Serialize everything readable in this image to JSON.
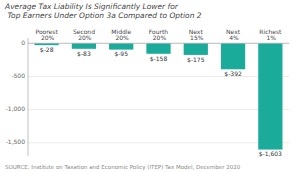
{
  "chart_data": {
    "type": "bar",
    "title": "Average Tax Liability Is Significantly Lower for Top Earners Under Option 3a Compared to Option 2",
    "categories": [
      "Poorest 20%",
      "Second 20%",
      "Middle 20%",
      "Fourth 20%",
      "Next 15%",
      "Next 4%",
      "Richest 1%"
    ],
    "values": [
      -28,
      -83,
      -95,
      -158,
      -175,
      -392,
      -1603
    ],
    "value_labels": [
      "$-28",
      "$-83",
      "$-95",
      "$-158",
      "$-175",
      "$-392",
      "$-1,603"
    ],
    "data_labels": true,
    "color": "#1aab9b",
    "ylim": [
      -1700,
      80
    ],
    "yticks": [
      0,
      -500,
      {
        "value": -1000,
        "label": "-1,000"
      },
      {
        "value": -1500,
        "label": "-1,500"
      }
    ],
    "grid": true,
    "annotations": [
      "SOURCE: Institute on Taxation and Economic Policy (ITEP) Tax Model, December 2020"
    ]
  }
}
